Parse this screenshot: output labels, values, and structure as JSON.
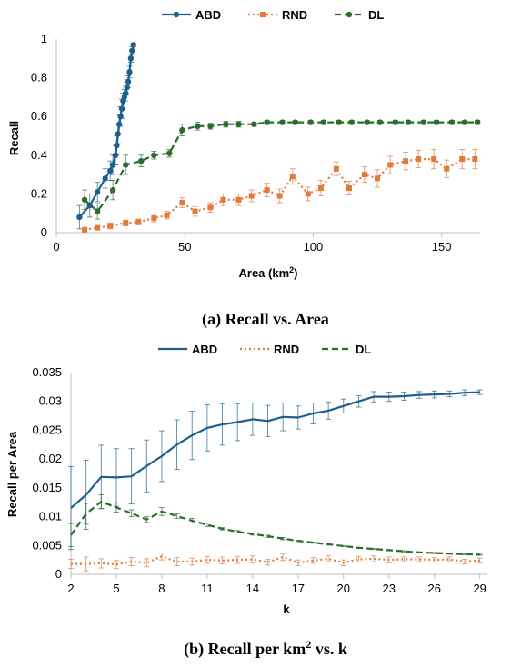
{
  "colors": {
    "ABD": "#1f5f8b",
    "RND": "#e07b39",
    "DL": "#2e6b2e"
  },
  "chart_data": [
    {
      "type": "line",
      "caption": "(a) Recall vs. Area",
      "xlabel": "Area (km",
      "xlabel_sup": "2",
      "xlabel_end": ")",
      "ylabel": "Recall",
      "xlim": [
        0,
        165
      ],
      "ylim": [
        0,
        1
      ],
      "xticks": [
        0,
        50,
        100,
        150
      ],
      "yticks": [
        0,
        0.2,
        0.4,
        0.6,
        0.8,
        1
      ],
      "ytick_labels": [
        "0",
        "0.2",
        "0.4",
        "0.6",
        "0.8",
        "1"
      ],
      "legend": "top-center",
      "series": [
        {
          "name": "ABD",
          "style": "solid",
          "marker": "circle",
          "x": [
            9,
            13,
            16,
            19,
            21,
            22,
            23,
            23.5,
            24,
            24.5,
            25,
            25.5,
            26,
            26.5,
            27,
            27.5,
            28,
            28.5,
            29,
            29.5,
            30
          ],
          "y": [
            0.08,
            0.14,
            0.21,
            0.28,
            0.32,
            0.35,
            0.4,
            0.45,
            0.51,
            0.56,
            0.6,
            0.64,
            0.68,
            0.7,
            0.72,
            0.75,
            0.78,
            0.83,
            0.9,
            0.94,
            0.97
          ],
          "err": [
            0.06,
            0.06,
            0.05,
            0.05,
            0.05,
            0.05,
            0.05,
            0.05,
            0.05,
            0.05,
            0.05,
            0.05,
            0.04,
            0.04,
            0.04,
            0.04,
            0.03,
            0.03,
            0.02,
            0.02,
            0.01
          ]
        },
        {
          "name": "RND",
          "style": "dotted",
          "marker": "square",
          "x": [
            11,
            16,
            21,
            27,
            32,
            38,
            43,
            49,
            54,
            60,
            65,
            71,
            76,
            82,
            87,
            92,
            98,
            103,
            109,
            114,
            120,
            125,
            130,
            136,
            141,
            147,
            152,
            158,
            163
          ],
          "y": [
            0.015,
            0.025,
            0.035,
            0.05,
            0.055,
            0.075,
            0.09,
            0.155,
            0.11,
            0.13,
            0.17,
            0.17,
            0.19,
            0.22,
            0.19,
            0.29,
            0.2,
            0.23,
            0.33,
            0.23,
            0.3,
            0.28,
            0.35,
            0.37,
            0.38,
            0.38,
            0.33,
            0.38,
            0.38
          ],
          "err": [
            0.01,
            0.01,
            0.015,
            0.015,
            0.015,
            0.02,
            0.02,
            0.025,
            0.025,
            0.025,
            0.03,
            0.03,
            0.03,
            0.035,
            0.035,
            0.04,
            0.035,
            0.04,
            0.035,
            0.035,
            0.04,
            0.045,
            0.045,
            0.045,
            0.045,
            0.05,
            0.045,
            0.05,
            0.05
          ]
        },
        {
          "name": "DL",
          "style": "dashed",
          "marker": "circle",
          "x": [
            11,
            16,
            22,
            27,
            33,
            38,
            44,
            49,
            55,
            60,
            66,
            71,
            77,
            82,
            88,
            93,
            99,
            104,
            110,
            115,
            121,
            126,
            132,
            137,
            143,
            148,
            154,
            159,
            164
          ],
          "y": [
            0.17,
            0.11,
            0.22,
            0.35,
            0.37,
            0.4,
            0.41,
            0.53,
            0.55,
            0.55,
            0.56,
            0.56,
            0.56,
            0.57,
            0.57,
            0.57,
            0.57,
            0.57,
            0.57,
            0.57,
            0.57,
            0.57,
            0.57,
            0.57,
            0.57,
            0.57,
            0.57,
            0.57,
            0.57
          ],
          "err": [
            0.05,
            0.04,
            0.05,
            0.05,
            0.03,
            0.02,
            0.02,
            0.03,
            0.02,
            0.015,
            0.015,
            0.015,
            0.01,
            0.01,
            0.01,
            0.01,
            0.01,
            0.01,
            0.01,
            0.01,
            0.01,
            0.01,
            0.01,
            0.01,
            0.01,
            0.01,
            0.01,
            0.01,
            0.01
          ]
        }
      ]
    },
    {
      "type": "line",
      "caption_main": "(b) Recall per km",
      "caption_sup": "2",
      "caption_end": " vs. k",
      "xlabel": "k",
      "ylabel": "Recall per Area",
      "xlim": [
        2,
        29.5
      ],
      "ylim": [
        0,
        0.035
      ],
      "xticks": [
        2,
        5,
        8,
        11,
        14,
        17,
        20,
        23,
        26,
        29
      ],
      "yticks": [
        0,
        0.005,
        0.01,
        0.015,
        0.02,
        0.025,
        0.03,
        0.035
      ],
      "ytick_labels": [
        "0",
        "0.005",
        "0.01",
        "0.015",
        "0.02",
        "0.025",
        "0.03",
        "0.035"
      ],
      "legend": "top-center",
      "series": [
        {
          "name": "ABD",
          "style": "solid",
          "x": [
            2,
            3,
            4,
            5,
            6,
            7,
            8,
            9,
            10,
            11,
            12,
            13,
            14,
            15,
            16,
            17,
            18,
            19,
            20,
            21,
            22,
            23,
            24,
            25,
            26,
            27,
            28,
            29
          ],
          "y": [
            0.0115,
            0.0138,
            0.0169,
            0.0168,
            0.017,
            0.0188,
            0.0205,
            0.0225,
            0.0241,
            0.0254,
            0.026,
            0.0264,
            0.0269,
            0.0266,
            0.0273,
            0.0272,
            0.0279,
            0.0284,
            0.0292,
            0.03,
            0.0308,
            0.0308,
            0.0309,
            0.0311,
            0.0312,
            0.0313,
            0.0315,
            0.0316
          ],
          "err": [
            0.0072,
            0.006,
            0.0055,
            0.005,
            0.0048,
            0.0045,
            0.0044,
            0.0043,
            0.0042,
            0.004,
            0.0036,
            0.0032,
            0.0028,
            0.0027,
            0.0024,
            0.002,
            0.0018,
            0.0015,
            0.0012,
            0.001,
            0.0009,
            0.0008,
            0.0007,
            0.0006,
            0.0006,
            0.0005,
            0.0005,
            0.0004
          ]
        },
        {
          "name": "RND",
          "style": "dotted",
          "x": [
            2,
            3,
            4,
            5,
            6,
            7,
            8,
            9,
            10,
            11,
            12,
            13,
            14,
            15,
            16,
            17,
            18,
            19,
            20,
            21,
            22,
            23,
            24,
            25,
            26,
            27,
            28,
            29
          ],
          "y": [
            0.0018,
            0.0018,
            0.0019,
            0.0017,
            0.0022,
            0.002,
            0.0031,
            0.0022,
            0.0022,
            0.0025,
            0.0024,
            0.0025,
            0.0026,
            0.0021,
            0.003,
            0.002,
            0.0024,
            0.0027,
            0.002,
            0.0026,
            0.0027,
            0.0025,
            0.0026,
            0.0026,
            0.0025,
            0.0026,
            0.0022,
            0.0024
          ],
          "err": [
            0.0008,
            0.0012,
            0.0008,
            0.0007,
            0.0007,
            0.0007,
            0.0006,
            0.0007,
            0.0006,
            0.0006,
            0.0006,
            0.0006,
            0.0006,
            0.0005,
            0.0006,
            0.0005,
            0.0005,
            0.0005,
            0.0005,
            0.0005,
            0.0005,
            0.0005,
            0.0004,
            0.0004,
            0.0004,
            0.0004,
            0.0004,
            0.0004
          ]
        },
        {
          "name": "DL",
          "style": "dashed",
          "x": [
            2,
            3,
            4,
            5,
            6,
            7,
            8,
            9,
            10,
            11,
            12,
            13,
            14,
            15,
            16,
            17,
            18,
            19,
            20,
            21,
            22,
            23,
            24,
            25,
            26,
            27,
            28,
            29
          ],
          "y": [
            0.0068,
            0.0105,
            0.0126,
            0.0116,
            0.0106,
            0.0095,
            0.0109,
            0.0101,
            0.0093,
            0.0086,
            0.0079,
            0.0074,
            0.007,
            0.0066,
            0.0062,
            0.0058,
            0.0055,
            0.0052,
            0.0049,
            0.0046,
            0.0044,
            0.0042,
            0.004,
            0.0038,
            0.0037,
            0.0036,
            0.0035,
            0.0034
          ],
          "err": [
            0.002,
            0.0018,
            0.0012,
            0.0008,
            0.0006,
            0.0005,
            0.0007,
            0.0004,
            0.0004,
            0.0003,
            0.0002,
            0.0002,
            0.0002,
            0.0002,
            0.0002,
            0.0001,
            0.0001,
            0.0001,
            0.0001,
            0.0001,
            0.0001,
            0.0001,
            0.0001,
            0.0001,
            0.0001,
            0.0001,
            0.0001,
            0.0001
          ]
        }
      ]
    }
  ]
}
